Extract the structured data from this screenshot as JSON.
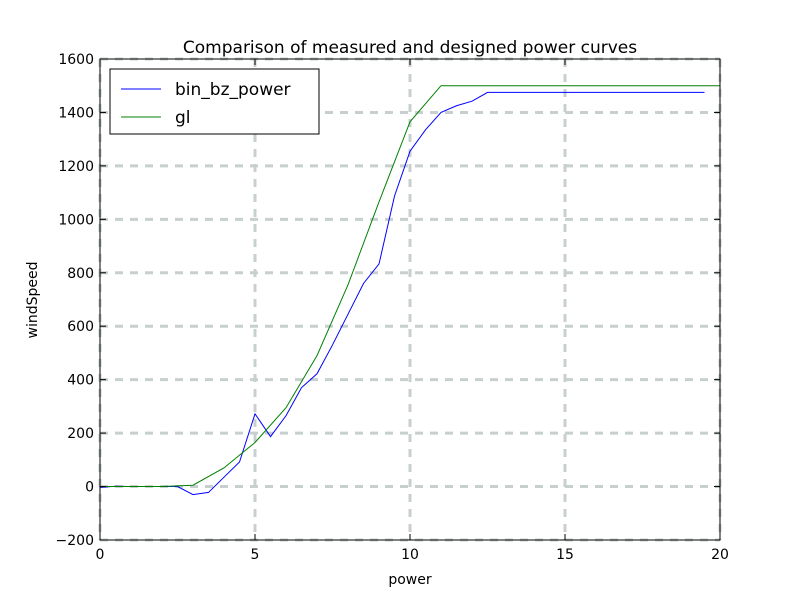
{
  "chart_data": {
    "type": "line",
    "title": "Comparison of measured and designed power curves",
    "xlabel": "power",
    "ylabel": "windSpeed",
    "xlim": [
      0,
      20
    ],
    "ylim": [
      -200,
      1600
    ],
    "xticks": [
      0,
      5,
      10,
      15,
      20
    ],
    "yticks": [
      -200,
      0,
      200,
      400,
      600,
      800,
      1000,
      1200,
      1400,
      1600
    ],
    "grid": true,
    "legend_position": "top-left",
    "series": [
      {
        "name": "bin_bz_power",
        "color": "#0000ff",
        "x": [
          0,
          0.5,
          1,
          1.5,
          2,
          2.5,
          3,
          3.5,
          4,
          4.5,
          5,
          5.5,
          6,
          6.5,
          7,
          7.5,
          8,
          8.5,
          9,
          9.5,
          10,
          10.5,
          11,
          11.5,
          12,
          12.5,
          13,
          13.5,
          14,
          14.5,
          15,
          15.5,
          16,
          16.5,
          17,
          17.5,
          18,
          18.5,
          19,
          19.5
        ],
        "y": [
          -3,
          1,
          0,
          0,
          0,
          0,
          -30,
          -22,
          35,
          92,
          272,
          187,
          265,
          370,
          422,
          530,
          645,
          760,
          833,
          1087,
          1255,
          1335,
          1400,
          1425,
          1442,
          1475,
          1475,
          1475,
          1475,
          1475,
          1475,
          1475,
          1475,
          1475,
          1475,
          1475,
          1475,
          1475,
          1475,
          1475
        ]
      },
      {
        "name": "gl",
        "color": "#008000",
        "x": [
          0,
          1,
          2,
          3,
          4,
          5,
          6,
          7,
          8,
          9,
          10,
          11,
          12,
          13,
          14,
          15,
          16,
          17,
          18,
          19,
          20
        ],
        "y": [
          0,
          0,
          0,
          5,
          70,
          165,
          295,
          490,
          755,
          1065,
          1365,
          1500,
          1500,
          1500,
          1500,
          1500,
          1500,
          1500,
          1500,
          1500,
          1500
        ]
      }
    ]
  }
}
